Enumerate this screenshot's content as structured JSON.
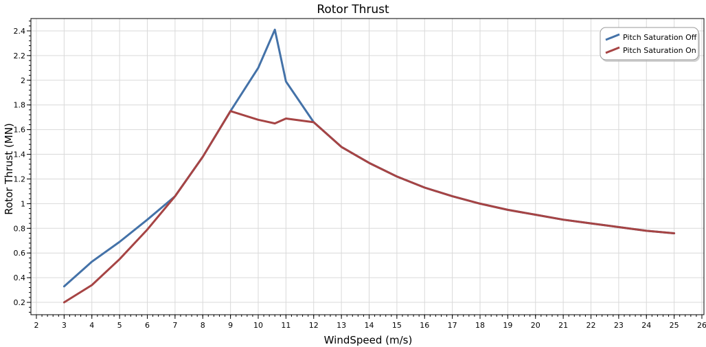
{
  "chart_data": {
    "type": "line",
    "title": "Rotor Thrust",
    "xlabel": "WindSpeed (m/s)",
    "ylabel": "Rotor Thrust (MN)",
    "xlim": [
      2,
      26
    ],
    "ylim": [
      0.1,
      2.5
    ],
    "x_ticks": [
      2,
      3,
      4,
      5,
      6,
      7,
      8,
      9,
      10,
      11,
      12,
      13,
      14,
      15,
      16,
      17,
      18,
      19,
      20,
      21,
      22,
      23,
      24,
      25,
      26
    ],
    "y_ticks": [
      0.2,
      0.4,
      0.6,
      0.8,
      1,
      1.2,
      1.4,
      1.6,
      1.8,
      2,
      2.2,
      2.4
    ],
    "grid": true,
    "legend_position": "top-right",
    "series": [
      {
        "name": "Pitch Saturation Off",
        "color": "#4472a8",
        "x": [
          3,
          4,
          5,
          6,
          7,
          8,
          9,
          10,
          10.6,
          11,
          12,
          13,
          14,
          15,
          16,
          17,
          18,
          19,
          20,
          21,
          22,
          23,
          24,
          25
        ],
        "y": [
          0.33,
          0.53,
          0.69,
          0.87,
          1.06,
          1.38,
          1.75,
          2.1,
          2.41,
          1.99,
          1.66,
          1.46,
          1.33,
          1.22,
          1.13,
          1.06,
          1.0,
          0.95,
          0.91,
          0.87,
          0.84,
          0.81,
          0.78,
          0.76
        ]
      },
      {
        "name": "Pitch Saturation On",
        "color": "#a64444",
        "x": [
          3,
          4,
          5,
          6,
          7,
          8,
          9,
          10,
          10.6,
          11,
          12,
          13,
          14,
          15,
          16,
          17,
          18,
          19,
          20,
          21,
          22,
          23,
          24,
          25
        ],
        "y": [
          0.2,
          0.34,
          0.55,
          0.79,
          1.06,
          1.38,
          1.75,
          1.68,
          1.65,
          1.69,
          1.66,
          1.46,
          1.33,
          1.22,
          1.13,
          1.06,
          1.0,
          0.95,
          0.91,
          0.87,
          0.84,
          0.81,
          0.78,
          0.76
        ]
      }
    ]
  }
}
